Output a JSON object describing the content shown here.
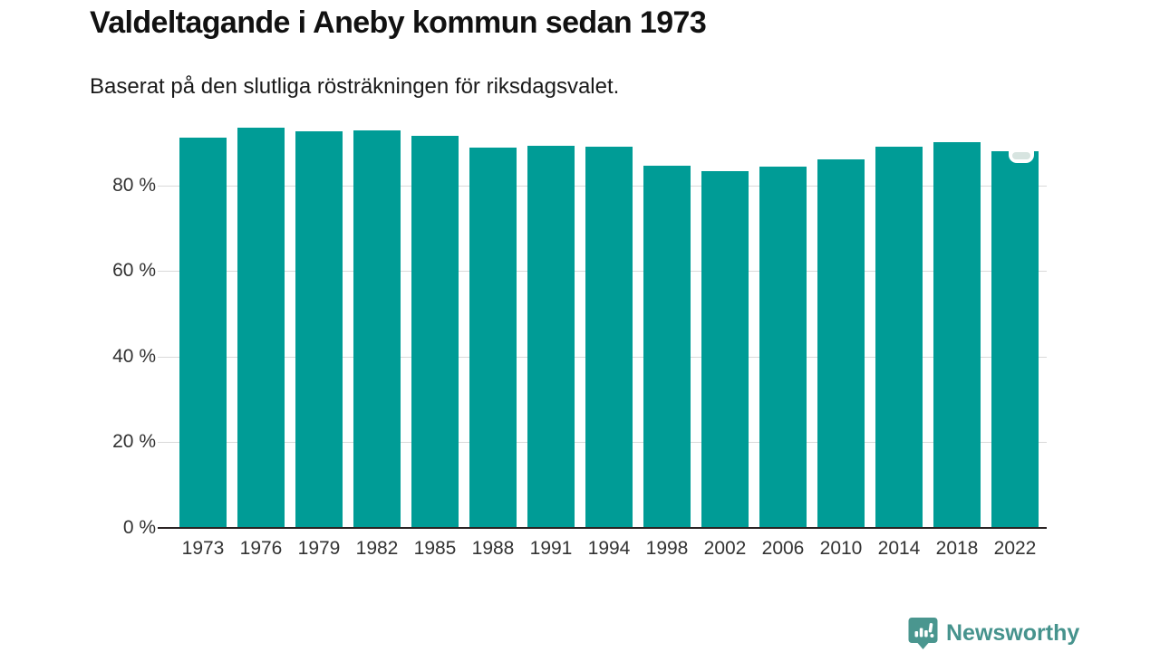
{
  "chart": {
    "title": "Valdeltagande i Aneby kommun sedan 1973",
    "subtitle": "Baserat på den slutliga rösträkningen för riksdagsvalet."
  },
  "chart_data": {
    "type": "bar",
    "title": "Valdeltagande i Aneby kommun sedan 1973",
    "subtitle": "Baserat på den slutliga rösträkningen för riksdagsvalet.",
    "categories": [
      "1973",
      "1976",
      "1979",
      "1982",
      "1985",
      "1988",
      "1991",
      "1994",
      "1998",
      "2002",
      "2006",
      "2010",
      "2014",
      "2018",
      "2022"
    ],
    "values": [
      91.2,
      93.4,
      92.5,
      92.8,
      91.5,
      88.7,
      89.2,
      89.0,
      84.6,
      83.4,
      84.4,
      86.0,
      89.1,
      90.0,
      87.9
    ],
    "unit": "%",
    "xlabel": "",
    "ylabel": "",
    "ylim": [
      0,
      100
    ],
    "yticks": [
      {
        "value": 0,
        "label": "0 %"
      },
      {
        "value": 20,
        "label": "20 %"
      },
      {
        "value": 40,
        "label": "40 %"
      },
      {
        "value": 60,
        "label": "60 %"
      },
      {
        "value": 80,
        "label": "80 %"
      }
    ],
    "grid": "horizontal",
    "legend": "none",
    "bar_color": "#009c96",
    "gridline_color": "#d9d9d9",
    "axis_color": "#2b2424",
    "tick_label_color": "#333333",
    "latest_bar_has_marker": true
  },
  "footer": {
    "logo_text": "Newsworthy",
    "logo_color": "#46938d"
  }
}
